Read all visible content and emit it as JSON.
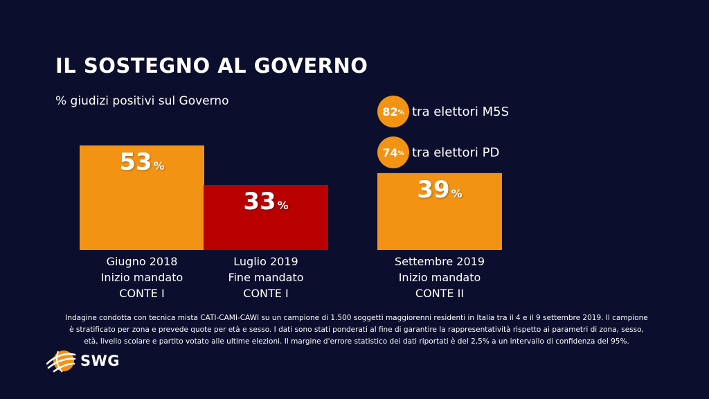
{
  "title": "IL SOSTEGNO AL GOVERNO",
  "subtitle": "% giudizi positivi sul Governo",
  "chart_data": {
    "type": "bar",
    "title": "IL SOSTEGNO AL GOVERNO",
    "ylabel": "% giudizi positivi sul Governo",
    "ylim": [
      0,
      60
    ],
    "unit": "%",
    "bars": [
      {
        "value": 53,
        "label_lines": [
          "Giugno 2018",
          "Inizio mandato",
          "CONTE I"
        ],
        "color": "#f39314"
      },
      {
        "value": 33,
        "label_lines": [
          "Luglio 2019",
          "Fine mandato",
          "CONTE I"
        ],
        "color": "#b90000"
      },
      {
        "value": 39,
        "label_lines": [
          "Settembre 2019",
          "Inizio mandato",
          "CONTE II"
        ],
        "color": "#f39314"
      }
    ],
    "annotations": [
      {
        "value": "82",
        "unit": "%",
        "text": "tra elettori M5S"
      },
      {
        "value": "74",
        "unit": "%",
        "text": "tra elettori PD"
      }
    ]
  },
  "note": "Indagine condotta con tecnica mista CATI-CAMI-CAWI su un campione di 1.500 soggetti maggiorenni residenti in Italia tra il 4 e il  9 settembre 2019. Il campione è stratificato per zona e prevede quote per età e sesso. I dati sono stati ponderati al fine di garantire la rappresentatività rispetto ai parametri di zona, sesso, età, livello scolare e partito votato alle ultime elezioni. Il margine d'errore statistico dei dati riportati è del 2,5% a un intervallo di confidenza del 95%.",
  "logo": {
    "text": "SWG",
    "color": "#f39314"
  }
}
